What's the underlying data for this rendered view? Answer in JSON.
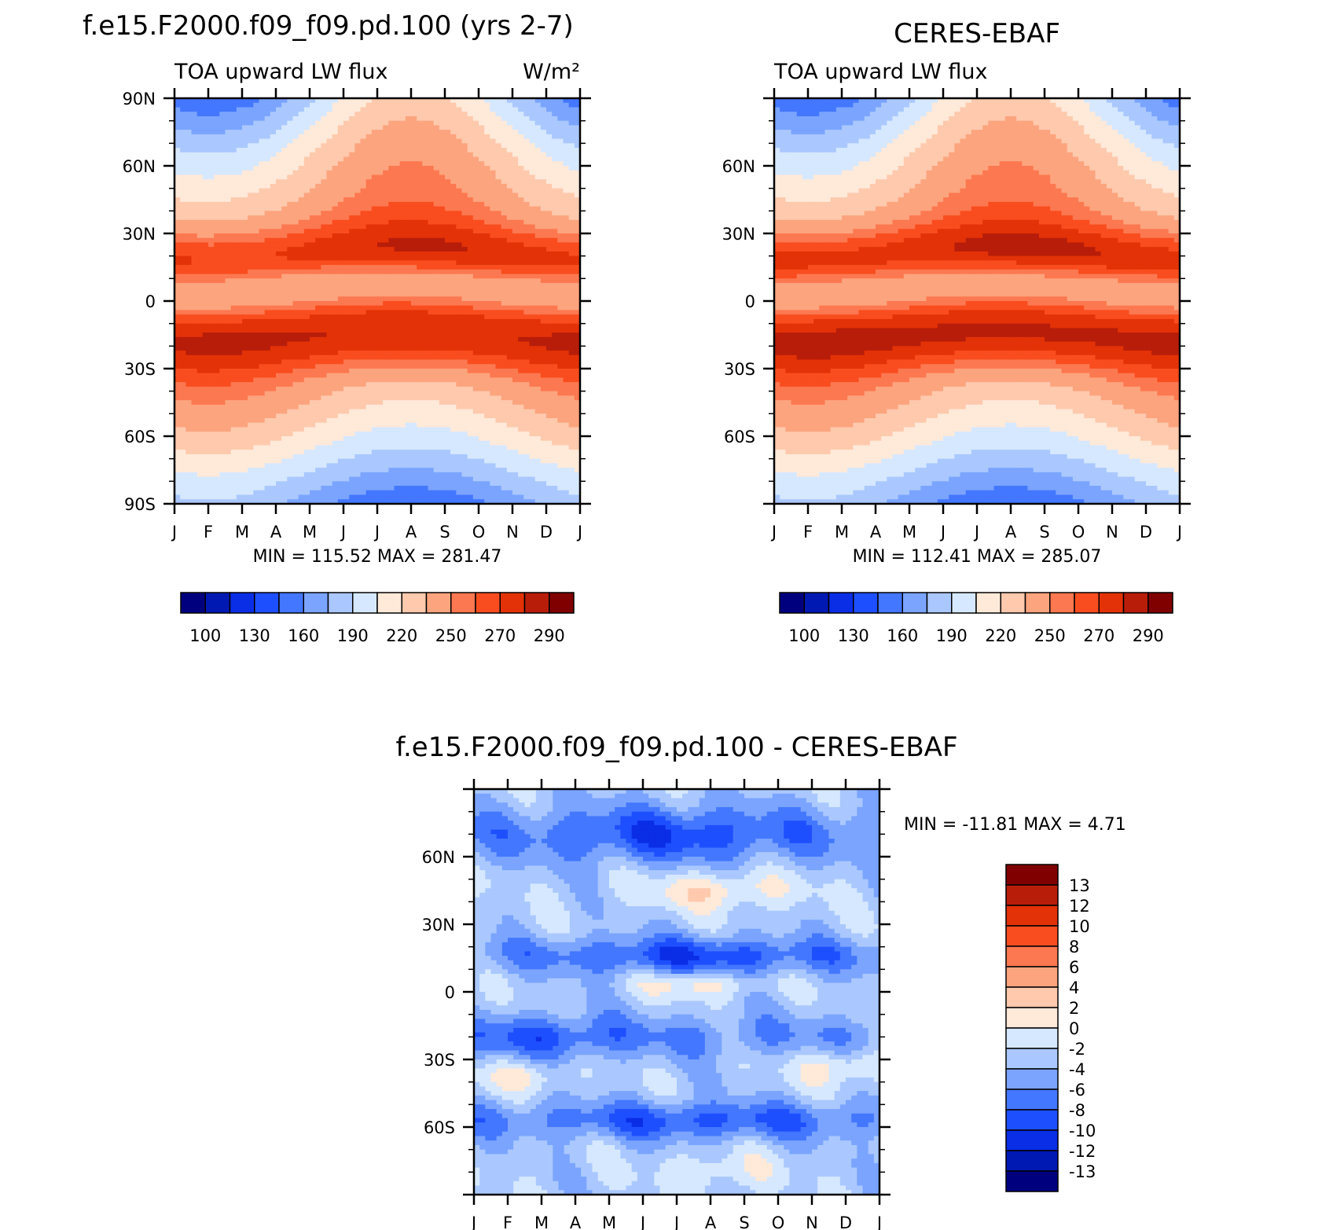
{
  "chart_data": [
    {
      "type": "heatmap",
      "title": "f.e15.F2000.f09_f09.pd.100 (yrs 2-7)",
      "subtitle_left": "TOA upward LW flux",
      "units": "W/m²",
      "x_tick_labels": [
        "J",
        "F",
        "M",
        "A",
        "M",
        "J",
        "J",
        "A",
        "S",
        "O",
        "N",
        "D",
        "J"
      ],
      "y_tick_labels": [
        "90N",
        "60N",
        "30N",
        "0",
        "30S",
        "60S",
        "90S"
      ],
      "y_tick_values": [
        90,
        60,
        30,
        0,
        -30,
        -60,
        -90
      ],
      "stats_text": "MIN = 115.52 MAX = 281.47",
      "min": 115.52,
      "max": 281.47,
      "colorbar_labels": [
        "100",
        "130",
        "160",
        "190",
        "220",
        "250",
        "270",
        "290"
      ]
    },
    {
      "type": "heatmap",
      "title": "CERES-EBAF",
      "subtitle_left": "TOA upward LW flux",
      "x_tick_labels": [
        "J",
        "F",
        "M",
        "A",
        "M",
        "J",
        "J",
        "A",
        "S",
        "O",
        "N",
        "D",
        "J"
      ],
      "y_tick_labels": [
        "60N",
        "30N",
        "0",
        "30S",
        "60S"
      ],
      "y_tick_values": [
        60,
        30,
        0,
        -30,
        -60
      ],
      "stats_text": "MIN = 112.41 MAX = 285.07",
      "min": 112.41,
      "max": 285.07,
      "colorbar_labels": [
        "100",
        "130",
        "160",
        "190",
        "220",
        "250",
        "270",
        "290"
      ]
    },
    {
      "type": "heatmap",
      "title": "f.e15.F2000.f09_f09.pd.100 - CERES-EBAF",
      "x_tick_labels": [
        "J",
        "F",
        "M",
        "A",
        "M",
        "J",
        "J",
        "A",
        "S",
        "O",
        "N",
        "D",
        "J"
      ],
      "y_tick_labels": [
        "60N",
        "30N",
        "0",
        "30S",
        "60S"
      ],
      "y_tick_values": [
        60,
        30,
        0,
        -30,
        -60
      ],
      "stats_text": "MIN = -11.81 MAX = 4.71",
      "min": -11.81,
      "max": 4.71,
      "colorbar_labels": [
        "13",
        "12",
        "10",
        "8",
        "6",
        "4",
        "2",
        "0",
        "-2",
        "-4",
        "-6",
        "-8",
        "-10",
        "-12",
        "-13"
      ]
    }
  ],
  "palette_abs": [
    "#00007f",
    "#0019b3",
    "#0a2de6",
    "#1e4fff",
    "#4477ff",
    "#7aa4ff",
    "#aac8ff",
    "#d6e8ff",
    "#ffe9d9",
    "#fec9ad",
    "#fca47e",
    "#fc7850",
    "#f94d1f",
    "#e33207",
    "#b81d0a",
    "#800000"
  ],
  "palette_diff": [
    "#800000",
    "#b81d0a",
    "#e33207",
    "#f94d1f",
    "#fc7850",
    "#fca47e",
    "#fec9ad",
    "#ffe9d9",
    "#d6e8ff",
    "#aac8ff",
    "#7aa4ff",
    "#4477ff",
    "#1e4fff",
    "#0a2de6",
    "#0019b3",
    "#00007f"
  ]
}
